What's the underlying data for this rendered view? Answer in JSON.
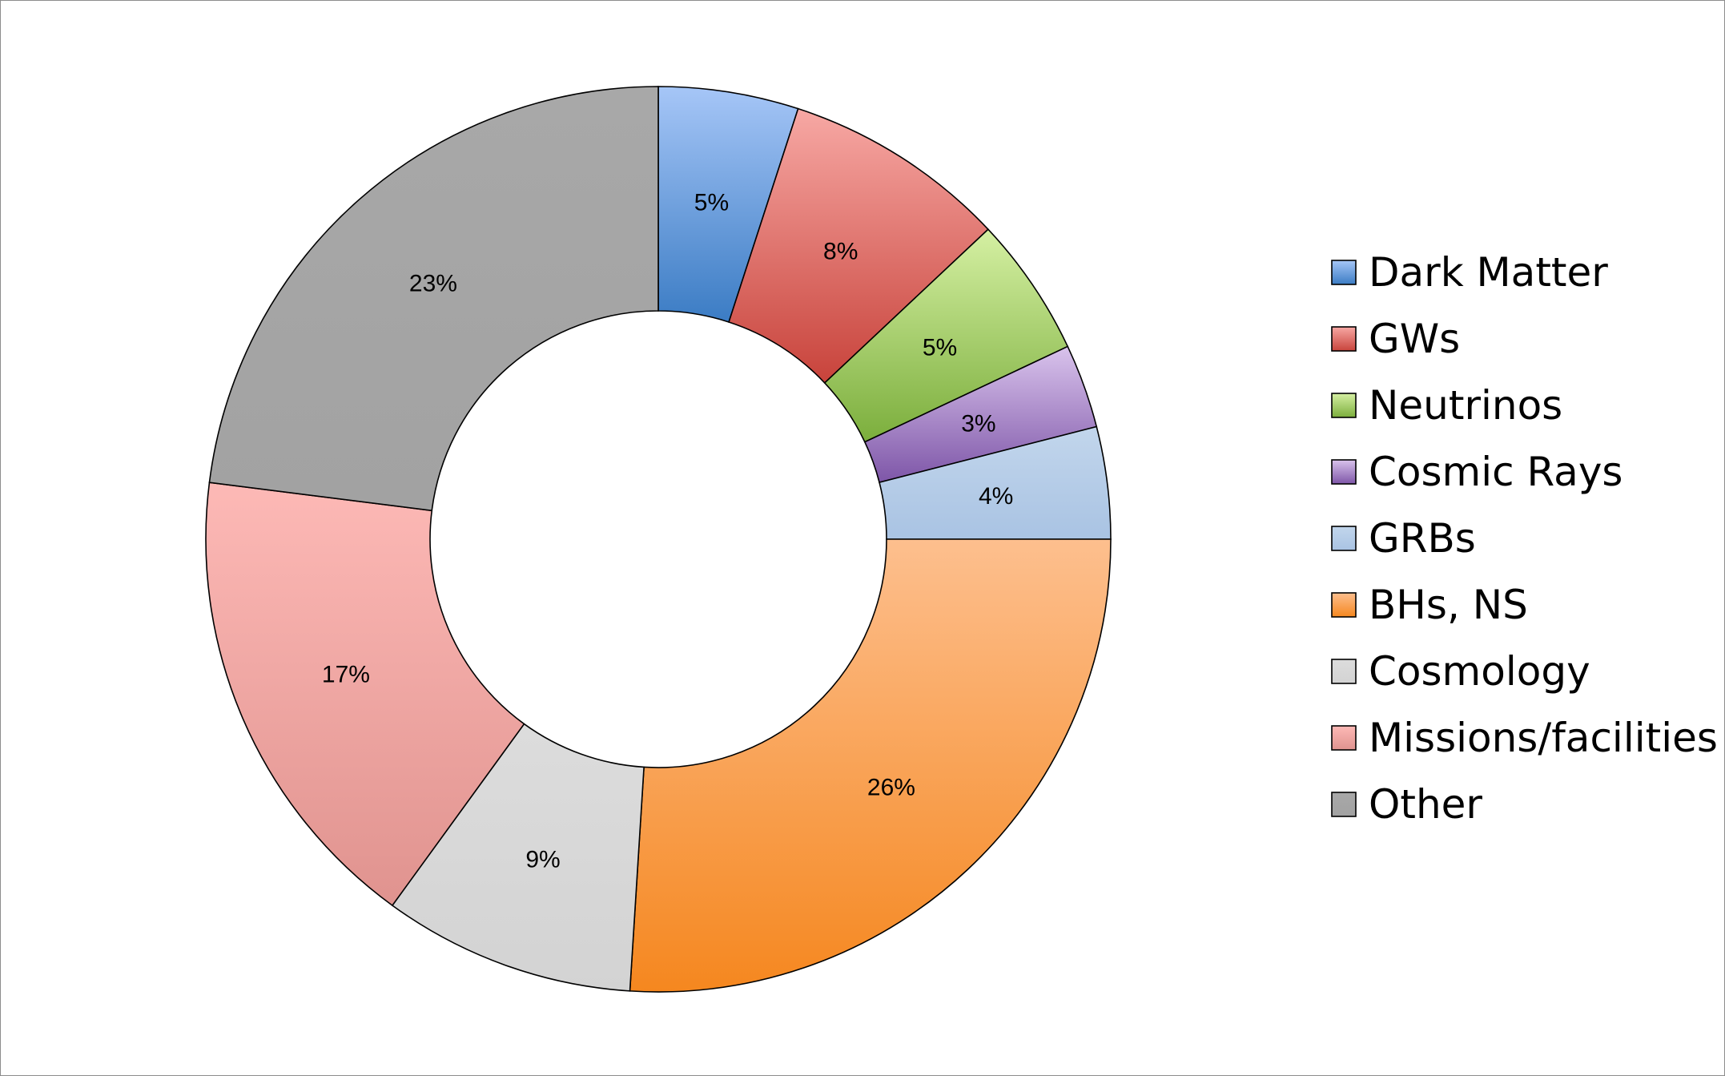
{
  "chart_data": {
    "type": "pie",
    "variant": "donut",
    "title": "",
    "legend_position": "right",
    "categories": [
      "Dark Matter",
      "GWs",
      "Neutrinos",
      "Cosmic Rays",
      "GRBs",
      "BHs, NS",
      "Cosmology",
      "Missions/facilities",
      "Other"
    ],
    "values": [
      5,
      8,
      5,
      3,
      4,
      26,
      9,
      17,
      23
    ],
    "labels": [
      "5%",
      "8%",
      "5%",
      "3%",
      "4%",
      "26%",
      "9%",
      "17%",
      "23%"
    ],
    "colors": [
      {
        "light": "#a6c6f7",
        "dark": "#3b7cc4"
      },
      {
        "light": "#f7a8a4",
        "dark": "#c8433b"
      },
      {
        "light": "#d5f0a3",
        "dark": "#7bae3c"
      },
      {
        "light": "#d9c3ec",
        "dark": "#7e56a8"
      },
      {
        "light": "#c2d6ec",
        "dark": "#a9c3e3"
      },
      {
        "light": "#fdbf8e",
        "dark": "#f5871f"
      },
      {
        "light": "#dcdcdc",
        "dark": "#d3d3d3"
      },
      {
        "light": "#fdb9b6",
        "dark": "#e0938f"
      },
      {
        "light": "#a8a8a8",
        "dark": "#a2a2a2"
      }
    ]
  }
}
